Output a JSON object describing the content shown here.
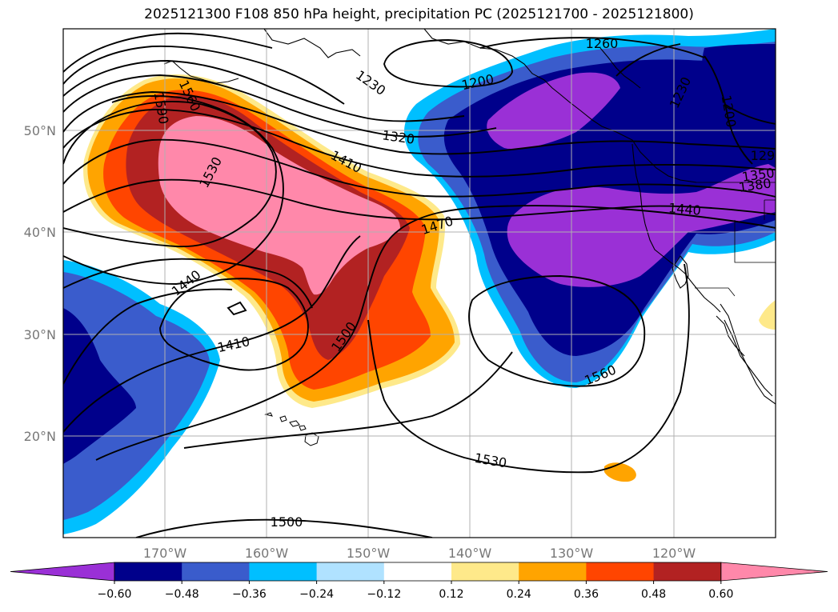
{
  "chart_data": {
    "type": "map",
    "title": "2025121300 F108 850 hPa height, precipitation PC (2025121700 - 2025121800)",
    "x_ticks": [
      "170°W",
      "160°W",
      "150°W",
      "140°W",
      "130°W",
      "120°W"
    ],
    "y_ticks": [
      "20°N",
      "30°N",
      "40°N",
      "50°N"
    ],
    "lon_range": [
      -180,
      -110
    ],
    "lat_range": [
      10,
      60
    ],
    "grid": true,
    "height_contours": {
      "units": "m",
      "labeled_levels": [
        "1200",
        "1230",
        "1260",
        "1320",
        "1350",
        "1380",
        "1410",
        "1440",
        "1470",
        "1500",
        "1530",
        "1560",
        "1590"
      ]
    },
    "colorbar": {
      "orientation": "horizontal",
      "extend": "both",
      "tick_labels": [
        "−0.60",
        "−0.48",
        "−0.36",
        "−0.24",
        "−0.12",
        "0.12",
        "0.24",
        "0.36",
        "0.48",
        "0.60"
      ],
      "colors": [
        "#9a30d6",
        "#00008b",
        "#3a5ccc",
        "#00bfff",
        "#b0e2ff",
        "#ffffff",
        "#fee98a",
        "#ffa400",
        "#ff4500",
        "#b22222",
        "#ff88aa"
      ]
    }
  }
}
